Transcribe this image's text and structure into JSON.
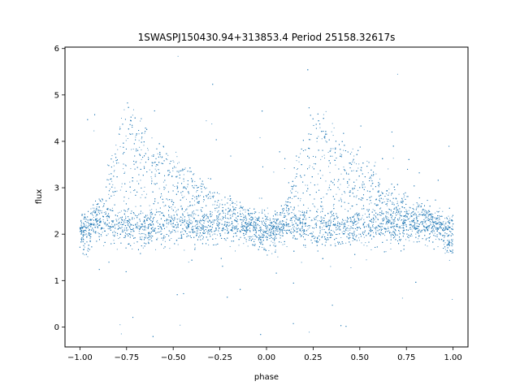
{
  "chart_data": {
    "type": "scatter",
    "title": "1SWASPJ150430.94+313853.4 Period 25158.32617s",
    "xlabel": "phase",
    "ylabel": "flux",
    "xlim": [
      -1.08,
      1.08
    ],
    "ylim": [
      -0.43,
      6.03
    ],
    "xticks": [
      -1.0,
      -0.75,
      -0.5,
      -0.25,
      0.0,
      0.25,
      0.5,
      0.75,
      1.0
    ],
    "xtick_labels": [
      "−1.00",
      "−0.75",
      "−0.50",
      "−0.25",
      "0.00",
      "0.25",
      "0.50",
      "0.75",
      "1.00"
    ],
    "yticks": [
      0,
      1,
      2,
      3,
      4,
      5,
      6
    ],
    "ytick_labels": [
      "0",
      "1",
      "2",
      "3",
      "4",
      "5",
      "6"
    ],
    "grid": false,
    "legend": "none",
    "point_color": "#1f77b4",
    "series": [
      {
        "description_points": "folded light curve, two cycles from phase -1 to 1",
        "x": [
          -1.0,
          -0.95,
          -0.9,
          -0.85,
          -0.8,
          -0.78,
          -0.75,
          -0.72,
          -0.7,
          -0.65,
          -0.6,
          -0.55,
          -0.5,
          -0.45,
          -0.4,
          -0.35,
          -0.3,
          -0.25,
          -0.2,
          -0.15,
          -0.1,
          -0.05,
          0.0,
          0.05,
          0.1,
          0.15,
          0.2,
          0.22,
          0.25,
          0.28,
          0.3,
          0.35,
          0.4,
          0.45,
          0.5,
          0.55,
          0.6,
          0.65,
          0.7,
          0.75,
          0.8,
          0.85,
          0.9,
          0.95,
          1.0
        ],
        "y": [
          2.2,
          2.3,
          2.6,
          3.2,
          4.2,
          4.7,
          4.8,
          4.6,
          4.4,
          3.9,
          3.6,
          3.3,
          3.1,
          2.9,
          2.7,
          2.6,
          2.5,
          2.4,
          2.3,
          2.2,
          2.1,
          2.0,
          2.1,
          2.4,
          3.0,
          3.6,
          4.2,
          4.7,
          4.8,
          4.6,
          4.4,
          3.9,
          3.6,
          3.3,
          3.1,
          2.9,
          2.7,
          2.6,
          2.5,
          2.4,
          2.3,
          2.2,
          2.2,
          2.1,
          2.1
        ]
      }
    ]
  }
}
